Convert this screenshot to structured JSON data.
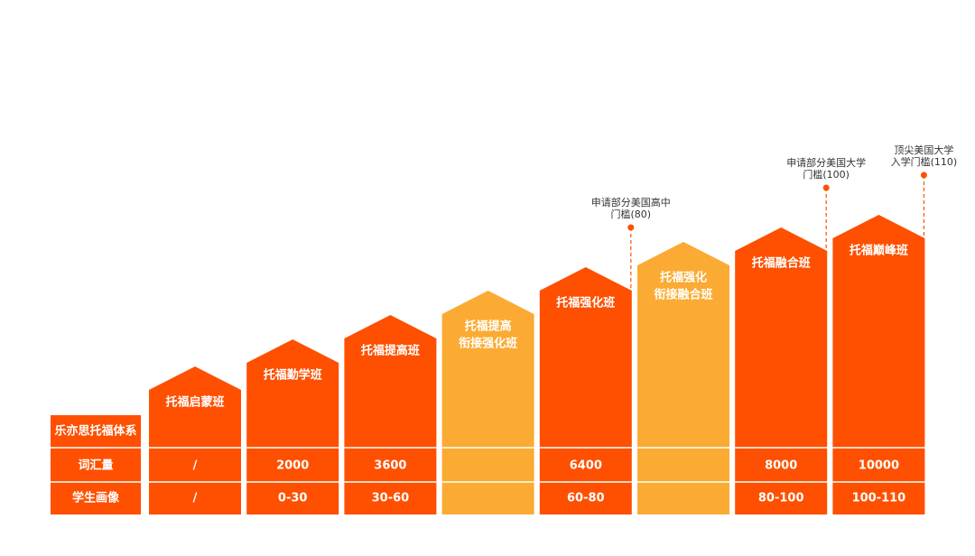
{
  "row_headers": [
    "乐亦思托福体系",
    "词汇量",
    "学生画像"
  ],
  "colors": {
    "main": "#fe5000",
    "bridge": "#fbab33"
  },
  "columns": [
    {
      "name": [
        "托福启蒙班"
      ],
      "vocabulary": "/",
      "level": "/",
      "color": "main"
    },
    {
      "name": [
        "托福勤学班"
      ],
      "vocabulary": "2000",
      "level": "0-30",
      "color": "main"
    },
    {
      "name": [
        "托福提高班"
      ],
      "vocabulary": "3600",
      "level": "30-60",
      "color": "main"
    },
    {
      "name": [
        "托福提高",
        "衔接强化班"
      ],
      "color": "bridge"
    },
    {
      "name": [
        "托福强化班"
      ],
      "vocabulary": "6400",
      "level": "60-80",
      "color": "main",
      "annotation": [
        "申请部分美国高中",
        "门槛(80)"
      ]
    },
    {
      "name": [
        "托福强化",
        "衔接融合班"
      ],
      "color": "bridge"
    },
    {
      "name": [
        "托福融合班"
      ],
      "vocabulary": "8000",
      "level": "80-100",
      "color": "main",
      "annotation": [
        "申请部分美国大学",
        "门槛(100)"
      ]
    },
    {
      "name": [
        "托福巅峰班"
      ],
      "vocabulary": "10000",
      "level": "100-110",
      "color": "main",
      "annotation": [
        "顶尖美国大学",
        "入学门槛(110)"
      ]
    }
  ]
}
